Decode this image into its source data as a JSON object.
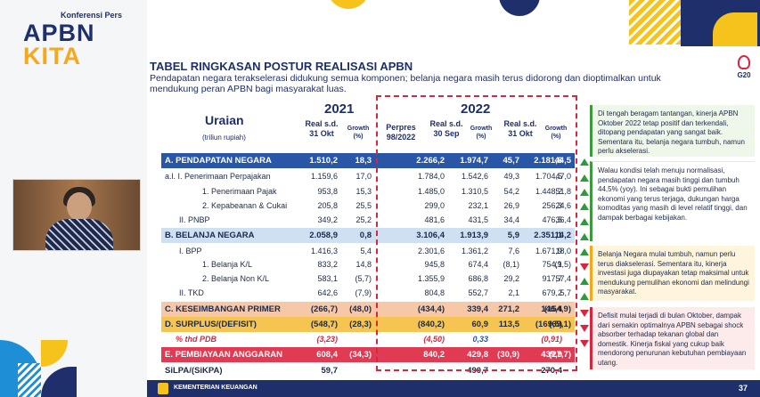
{
  "header": {
    "pre_title": "Konferensi Pers",
    "logo_line1": "APBN",
    "logo_line2": "KITA",
    "title": "TABEL RINGKASAN POSTUR REALISASI APBN",
    "subtitle": "Pendapatan negara terakselerasi didukung semua komponen; belanja negara masih terus didorong dan dioptimalkan untuk mendukung peran APBN bagi masyarakat luas.",
    "g20": "G20"
  },
  "table": {
    "uraian_label": "Uraian",
    "unit_label": "(triliun rupiah)",
    "year_2021": "2021",
    "year_2022": "2022",
    "col_headers": [
      "Real s.d. 31 Okt",
      "Growth (%)",
      "Perpres 98/2022",
      "Real s.d. 30 Sep",
      "Growth (%)",
      "Real s.d. 31 Okt",
      "Growth (%)"
    ],
    "rows": [
      {
        "label": "A.  PENDAPATAN NEGARA",
        "values": [
          "1.510,2",
          "18,3",
          "2.266,2",
          "1.974,7",
          "45,7",
          "2.181,6",
          "44,5"
        ]
      },
      {
        "label": "a.l.  I.    Penerimaan Perpajakan",
        "values": [
          "1.159,6",
          "17,0",
          "1.784,0",
          "1.542,6",
          "49,3",
          "1.704,5",
          "47,0"
        ]
      },
      {
        "label": "1.  Penerimaan Pajak",
        "values": [
          "953,8",
          "15,3",
          "1.485,0",
          "1.310,5",
          "54,2",
          "1.448,2",
          "51,8"
        ]
      },
      {
        "label": "2.  Kepabeanan & Cukai",
        "values": [
          "205,8",
          "25,5",
          "299,0",
          "232,1",
          "26,9",
          "256,3",
          "24,6"
        ]
      },
      {
        "label": "II.   PNBP",
        "values": [
          "349,2",
          "25,2",
          "481,6",
          "431,5",
          "34,4",
          "476,5",
          "36,4"
        ]
      },
      {
        "label": "B.  BELANJA NEGARA",
        "values": [
          "2.058,9",
          "0,8",
          "3.106,4",
          "1.913,9",
          "5,9",
          "2.351,1",
          "14,2"
        ]
      },
      {
        "label": "I.   BPP",
        "values": [
          "1.416,3",
          "5,4",
          "2.301,6",
          "1.361,2",
          "7,6",
          "1.671,9",
          "18,0"
        ]
      },
      {
        "label": "1.  Belanja K/L",
        "values": [
          "833,2",
          "14,8",
          "945,8",
          "674,4",
          "(8,1)",
          "754,1",
          "(9,5)"
        ]
      },
      {
        "label": "2.  Belanja Non K/L",
        "values": [
          "583,1",
          "(5,7)",
          "1.355,9",
          "686,8",
          "29,2",
          "917,7",
          "57,4"
        ]
      },
      {
        "label": "II.   TKD",
        "values": [
          "642,6",
          "(7,9)",
          "804,8",
          "552,7",
          "2,1",
          "679,2",
          "5,7"
        ]
      },
      {
        "label": "C.  KESEIMBANGAN PRIMER",
        "values": [
          "(266,7)",
          "(48,0)",
          "(434,4)",
          "339,4",
          "271,2",
          "146,4",
          "(154,9)"
        ]
      },
      {
        "label": "D.  SURPLUS/(DEFISIT)",
        "values": [
          "(548,7)",
          "(28,3)",
          "(840,2)",
          "60,9",
          "113,5",
          "(169,5)",
          "(69,1)"
        ]
      },
      {
        "label": "% thd PDB",
        "values": [
          "(3,23)",
          "",
          "(4,50)",
          "0,33",
          "",
          "(0,91)",
          ""
        ]
      },
      {
        "label": "E.  PEMBIAYAAN ANGGARAN",
        "values": [
          "608,4",
          "(34,3)",
          "840,2",
          "429,8",
          "(30,9)",
          "439,9",
          "(27,7)"
        ]
      },
      {
        "label": "SiLPA/(SiKPA)",
        "values": [
          "59,7",
          "",
          "-",
          "490,7",
          "",
          "270,4",
          ""
        ]
      }
    ]
  },
  "side_notes": [
    "Di tengah beragam tantangan, kinerja APBN Oktober 2022 tetap positif dan terkendali, ditopang pendapatan yang sangat baik. Sementara itu, belanja negara tumbuh, namun perlu akselerasi.",
    "Walau kondisi telah menuju normalisasi, pendapatan negara masih tinggi dan tumbuh 44,5% (yoy). Ini sebagai bukti pemulihan ekonomi yang terus terjaga, dukungan harga komoditas yang masih di level relatif tinggi, dan dampak berbagai kebijakan.",
    "Belanja Negara mulai tumbuh, namun perlu terus diakselerasi. Sementara itu, kinerja investasi juga diupayakan tetap maksimal untuk mendukung pemulihan ekonomi dan melindungi masyarakat.",
    "Defisit mulai terjadi di bulan Oktober, dampak dari semakin optimalnya APBN sebagai shock absorber terhadap tekanan global dan domestik. Kinerja fiskal yang cukup baik mendorong penurunan kebutuhan pembiayaan utang."
  ],
  "footer": {
    "ministry": "KEMENTERIAN KEUANGAN",
    "page": "37"
  },
  "colors": {
    "navy": "#1e2f6b",
    "yellow": "#f6c21c",
    "blue_row": "#2a56a8",
    "red_row": "#e13a53",
    "peach_row": "#f7c8a8",
    "yellow_row": "#f6c451",
    "lightblue_row": "#cfe0f3"
  }
}
